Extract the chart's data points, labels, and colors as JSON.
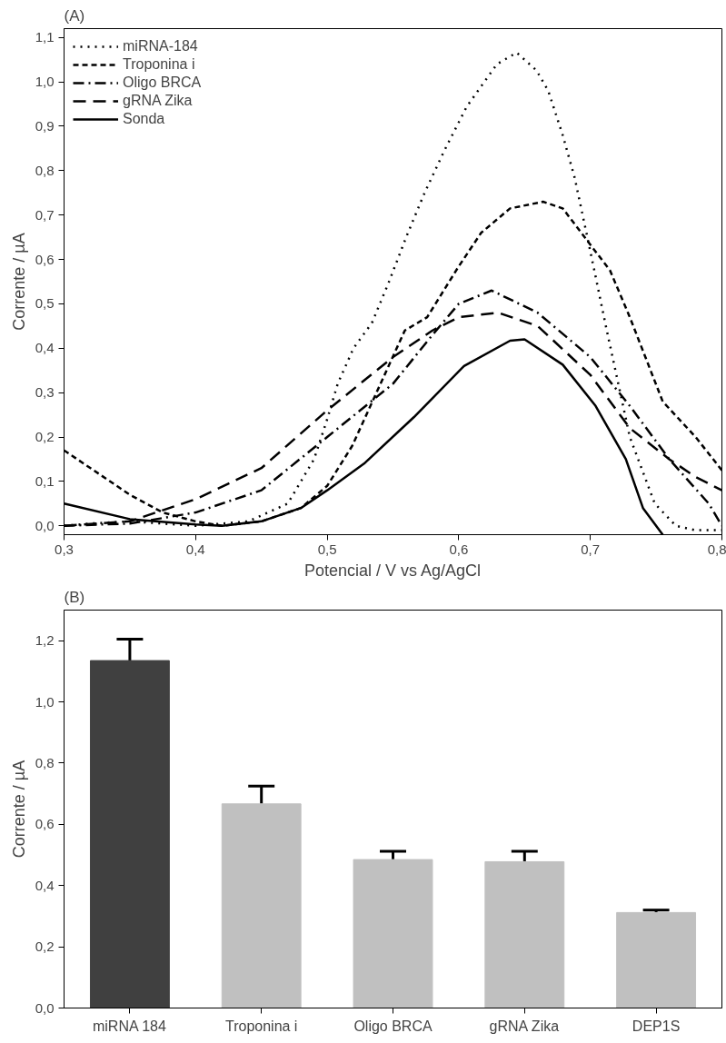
{
  "chart_data": [
    {
      "type": "line",
      "title": "(A)",
      "xlabel": "Potencial / V vs Ag/AgCl",
      "ylabel": "Corrente / µA",
      "xlim": [
        0.3,
        0.8
      ],
      "ylim": [
        -0.02,
        1.12
      ],
      "xticks": [
        {
          "value": 0.3,
          "label": "0,3"
        },
        {
          "value": 0.4,
          "label": "0,4"
        },
        {
          "value": 0.5,
          "label": "0,5"
        },
        {
          "value": 0.6,
          "label": "0,6"
        },
        {
          "value": 0.7,
          "label": "0,7"
        },
        {
          "value": 0.8,
          "label": "0,8"
        }
      ],
      "yticks": [
        {
          "value": 0,
          "label": "0,0"
        },
        {
          "value": 0.1,
          "label": "0,1"
        },
        {
          "value": 0.2,
          "label": "0,2"
        },
        {
          "value": 0.3,
          "label": "0,3"
        },
        {
          "value": 0.4,
          "label": "0,4"
        },
        {
          "value": 0.5,
          "label": "0,5"
        },
        {
          "value": 0.6,
          "label": "0,6"
        },
        {
          "value": 0.7,
          "label": "0,7"
        },
        {
          "value": 0.8,
          "label": "0,8"
        },
        {
          "value": 0.9,
          "label": "0,9"
        },
        {
          "value": 1.0,
          "label": "1,0"
        },
        {
          "value": 1.1,
          "label": "1,1"
        }
      ],
      "grid": false,
      "legend": "top left",
      "series": [
        {
          "name": "miRNA-184",
          "color": "#000000",
          "line_style": "dotted",
          "x": [
            0.3,
            0.32,
            0.35,
            0.4,
            0.44,
            0.47,
            0.49,
            0.5,
            0.508,
            0.52,
            0.534,
            0.547,
            0.56,
            0.574,
            0.589,
            0.606,
            0.629,
            0.644,
            0.659,
            0.668,
            0.679,
            0.688,
            0.692,
            0.702,
            0.712,
            0.73,
            0.749,
            0.765,
            0.78,
            0.8
          ],
          "values": [
            0.0,
            0.005,
            0.01,
            0.0,
            0.01,
            0.05,
            0.15,
            0.24,
            0.32,
            0.4,
            0.457,
            0.55,
            0.65,
            0.75,
            0.845,
            0.944,
            1.04,
            1.066,
            1.026,
            0.98,
            0.88,
            0.785,
            0.73,
            0.59,
            0.447,
            0.2,
            0.05,
            0.0,
            -0.01,
            -0.01
          ]
        },
        {
          "name": "Troponina i",
          "color": "#000000",
          "line_style": "dashed",
          "x": [
            0.3,
            0.35,
            0.375,
            0.4,
            0.42,
            0.45,
            0.48,
            0.5,
            0.519,
            0.559,
            0.576,
            0.599,
            0.617,
            0.639,
            0.664,
            0.679,
            0.697,
            0.715,
            0.73,
            0.755,
            0.78,
            0.8
          ],
          "values": [
            0.17,
            0.07,
            0.03,
            0.01,
            0.0,
            0.01,
            0.04,
            0.09,
            0.18,
            0.44,
            0.47,
            0.58,
            0.66,
            0.715,
            0.73,
            0.715,
            0.645,
            0.575,
            0.47,
            0.28,
            0.2,
            0.125
          ]
        },
        {
          "name": "Oligo BRCA",
          "color": "#000000",
          "line_style": "dashdot",
          "x": [
            0.3,
            0.35,
            0.4,
            0.45,
            0.5,
            0.55,
            0.58,
            0.6,
            0.625,
            0.66,
            0.7,
            0.73,
            0.76,
            0.79,
            0.8
          ],
          "values": [
            0.0,
            0.005,
            0.03,
            0.08,
            0.2,
            0.32,
            0.43,
            0.5,
            0.53,
            0.48,
            0.38,
            0.27,
            0.15,
            0.05,
            0.0
          ]
        },
        {
          "name": "gRNA Zika",
          "color": "#000000",
          "line_style": "longdash",
          "x": [
            0.3,
            0.35,
            0.4,
            0.45,
            0.5,
            0.55,
            0.58,
            0.6,
            0.63,
            0.66,
            0.7,
            0.73,
            0.76,
            0.78,
            0.8
          ],
          "values": [
            0.0,
            0.01,
            0.06,
            0.13,
            0.26,
            0.38,
            0.44,
            0.47,
            0.48,
            0.45,
            0.34,
            0.22,
            0.15,
            0.11,
            0.08
          ]
        },
        {
          "name": "Sonda",
          "color": "#000000",
          "line_style": "solid",
          "x": [
            0.3,
            0.35,
            0.4,
            0.42,
            0.45,
            0.48,
            0.5,
            0.528,
            0.566,
            0.604,
            0.639,
            0.65,
            0.679,
            0.704,
            0.727,
            0.74,
            0.755
          ],
          "values": [
            0.05,
            0.015,
            0.003,
            0.0,
            0.01,
            0.04,
            0.08,
            0.14,
            0.245,
            0.36,
            0.417,
            0.42,
            0.363,
            0.27,
            0.15,
            0.04,
            -0.02
          ]
        }
      ]
    },
    {
      "type": "bar",
      "title": "(B)",
      "ylabel": "Corrente / µA",
      "categories": [
        "miRNA 184",
        "Troponina i",
        "Oligo BRCA",
        "gRNA Zika",
        "DEP1S"
      ],
      "values": [
        1.135,
        0.667,
        0.485,
        0.478,
        0.312
      ],
      "colors": [
        "#404040",
        "#c0c0c0",
        "#c0c0c0",
        "#c0c0c0",
        "#c0c0c0"
      ],
      "errors": [
        [
          1.135,
          1.205
        ],
        [
          0.667,
          0.725
        ],
        [
          0.485,
          0.512
        ],
        [
          0.478,
          0.512
        ],
        [
          0.312,
          0.32
        ]
      ],
      "ylim": [
        0,
        1.3
      ],
      "yticks": [
        {
          "value": 0,
          "label": "0,0"
        },
        {
          "value": 0.2,
          "label": "0,2"
        },
        {
          "value": 0.4,
          "label": "0,4"
        },
        {
          "value": 0.6,
          "label": "0,6"
        },
        {
          "value": 0.8,
          "label": "0,8"
        },
        {
          "value": 1.0,
          "label": "1,0"
        },
        {
          "value": 1.2,
          "label": "1,2"
        }
      ],
      "grid": false
    }
  ]
}
